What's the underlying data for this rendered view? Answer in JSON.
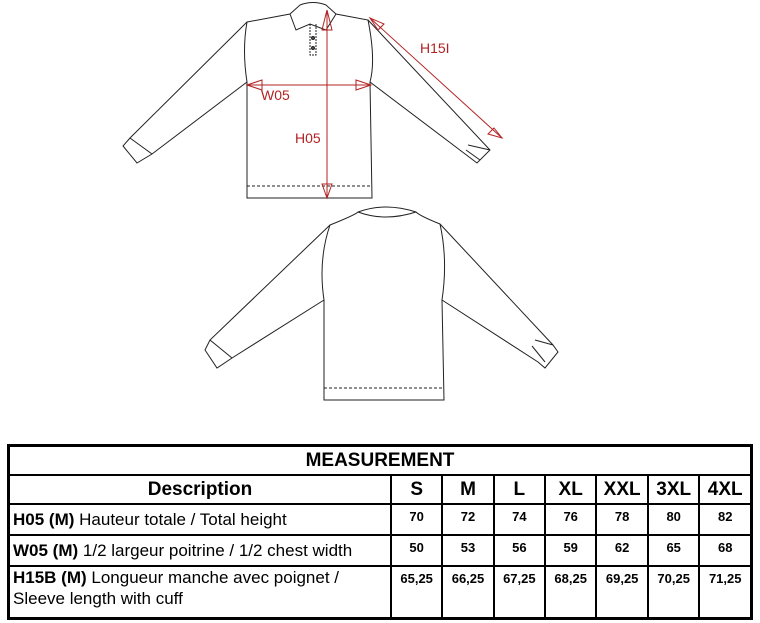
{
  "diagram": {
    "labels": {
      "h15": "H15I",
      "w05": "W05",
      "h05": "H05"
    },
    "arrow_color": "#b22222"
  },
  "table": {
    "title": "MEASUREMENT",
    "header": {
      "description": "Description",
      "sizes": [
        "S",
        "M",
        "L",
        "XL",
        "XXL",
        "3XL",
        "4XL"
      ]
    },
    "rows": [
      {
        "code": "H05 (M)",
        "text": " Hauteur totale / Total height",
        "values": [
          "70",
          "72",
          "74",
          "76",
          "78",
          "80",
          "82"
        ]
      },
      {
        "code": "W05 (M)",
        "text": " 1/2 largeur poitrine / 1/2 chest width",
        "values": [
          "50",
          "53",
          "56",
          "59",
          "62",
          "65",
          "68"
        ]
      },
      {
        "code": "H15B (M)",
        "text": " Longueur manche avec poignet / Sleeve length with cuff",
        "values": [
          "65,25",
          "66,25",
          "67,25",
          "68,25",
          "69,25",
          "70,25",
          "71,25"
        ]
      }
    ]
  }
}
